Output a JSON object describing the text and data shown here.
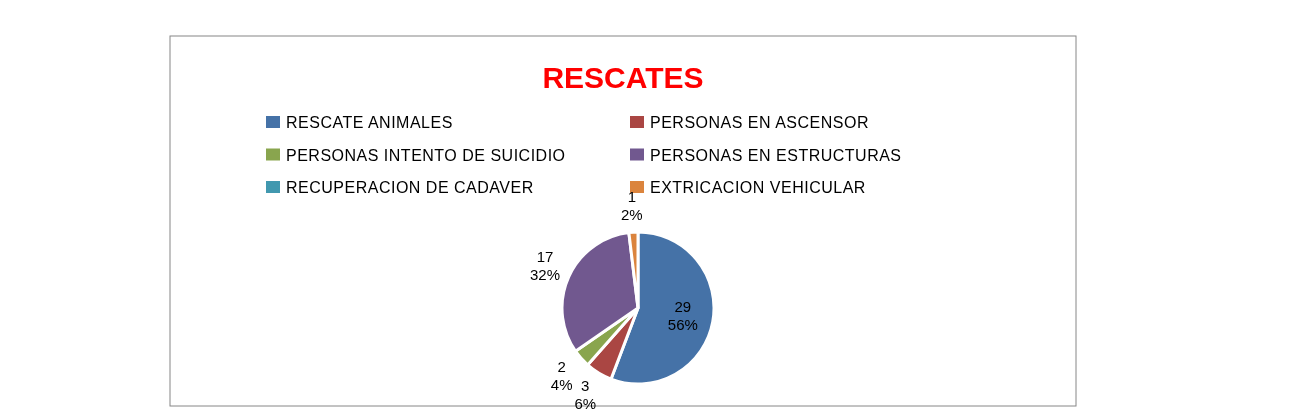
{
  "chart_data": {
    "type": "pie",
    "title": "RESCATES",
    "categories": [
      "RESCATE ANIMALES",
      "PERSONAS EN ASCENSOR",
      "PERSONAS INTENTO DE SUICIDIO",
      "PERSONAS EN ESTRUCTURAS",
      "RECUPERACION DE CADAVER",
      "EXTRICACION VEHICULAR"
    ],
    "values": [
      29,
      3,
      2,
      17,
      0,
      1
    ],
    "value_labels": [
      "29\n56%",
      "3\n6%",
      "2\n4%",
      "17\n32%",
      null,
      "1\n2%"
    ],
    "colors": [
      "#4572a7",
      "#aa4643",
      "#89a54e",
      "#71588f",
      "#4198af",
      "#db843d"
    ],
    "legend": "top"
  }
}
